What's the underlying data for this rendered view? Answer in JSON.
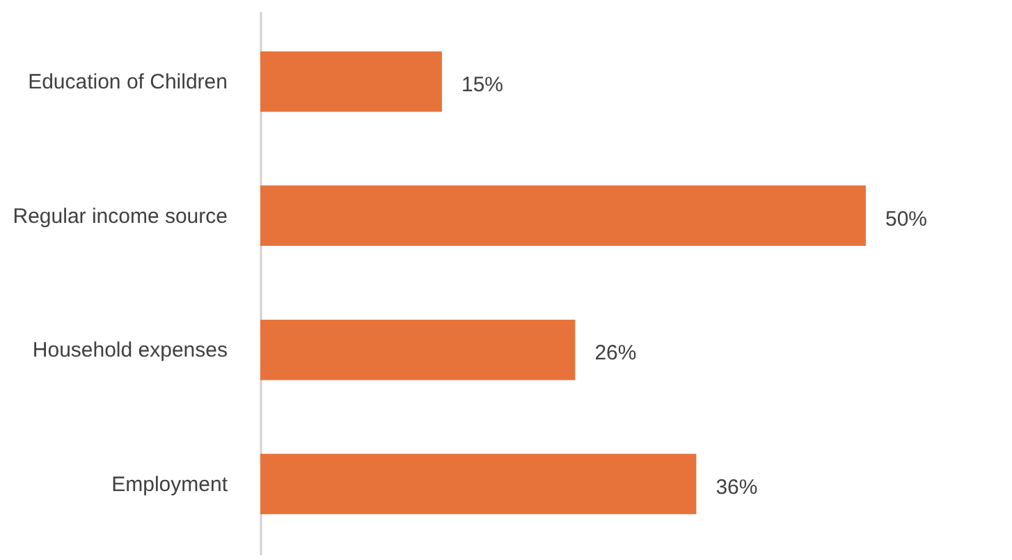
{
  "chart_data": {
    "type": "bar",
    "orientation": "horizontal",
    "categories": [
      "Education of Children",
      "Regular income source",
      "Household expenses",
      "Employment"
    ],
    "values": [
      15,
      50,
      26,
      36
    ],
    "color": "#e8733a",
    "value_labels": [
      "15%",
      "50%",
      "26%",
      "36%"
    ],
    "grid": false
  }
}
